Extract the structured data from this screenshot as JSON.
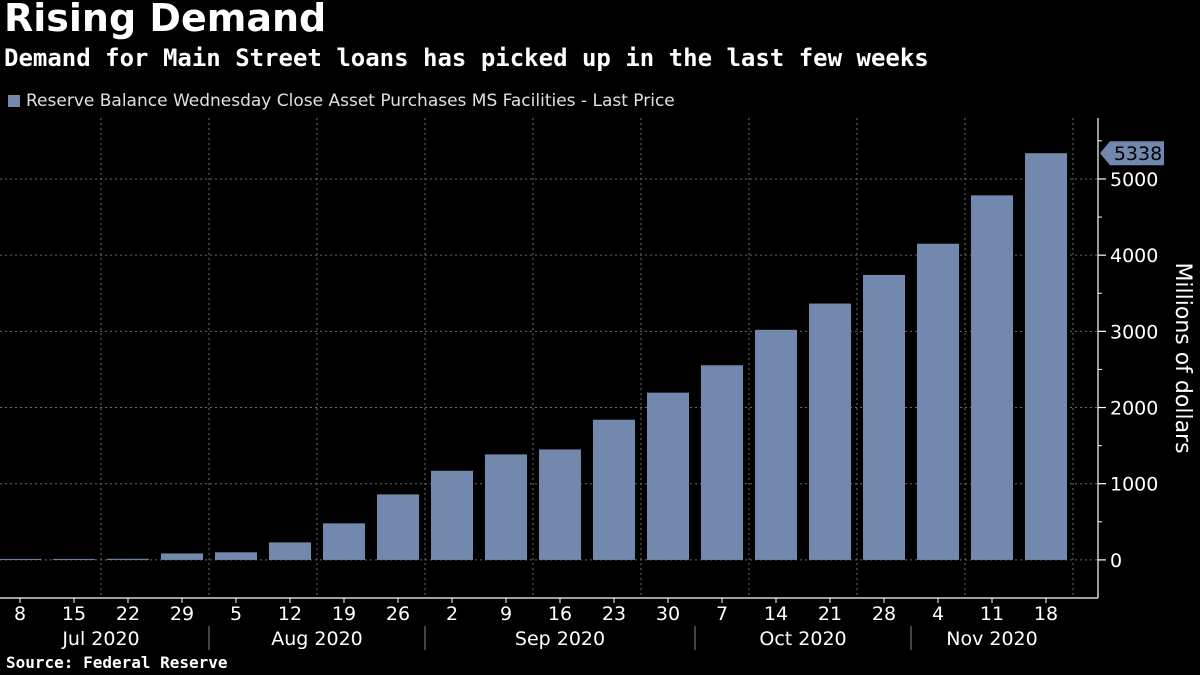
{
  "title": "Rising Demand",
  "subtitle": "Demand for Main Street loans has picked up in the last few weeks",
  "source": "Source: Federal Reserve",
  "colors": {
    "background": "#000000",
    "bar": "#7289ad",
    "grid": "#6a6a6a",
    "text": "#ffffff"
  },
  "chart_data": {
    "type": "bar",
    "series": [
      {
        "name": "Reserve Balance Wednesday Close Asset Purchases MS Facilities - Last Price",
        "values": [
          0,
          10,
          15,
          85,
          100,
          230,
          480,
          860,
          1170,
          1385,
          1450,
          1840,
          2195,
          2555,
          3020,
          3365,
          3740,
          4150,
          4785,
          5338
        ]
      }
    ],
    "categories": [
      "8",
      "15",
      "22",
      "29",
      "5",
      "12",
      "19",
      "26",
      "2",
      "9",
      "16",
      "23",
      "30",
      "7",
      "14",
      "21",
      "28",
      "4",
      "11",
      "18"
    ],
    "month_labels": [
      {
        "label": "Jul 2020",
        "start": 0,
        "end": 3
      },
      {
        "label": "Aug 2020",
        "start": 4,
        "end": 7
      },
      {
        "label": "Sep 2020",
        "start": 8,
        "end": 12
      },
      {
        "label": "Oct 2020",
        "start": 13,
        "end": 16
      },
      {
        "label": "Nov 2020",
        "start": 17,
        "end": 19
      }
    ],
    "ylabel": "Millions of dollars",
    "ylim": [
      -500,
      5800
    ],
    "yticks": [
      0,
      1000,
      2000,
      3000,
      4000,
      5000
    ],
    "last_value_label": "5338",
    "grid": true,
    "legend_position": "top-left"
  }
}
